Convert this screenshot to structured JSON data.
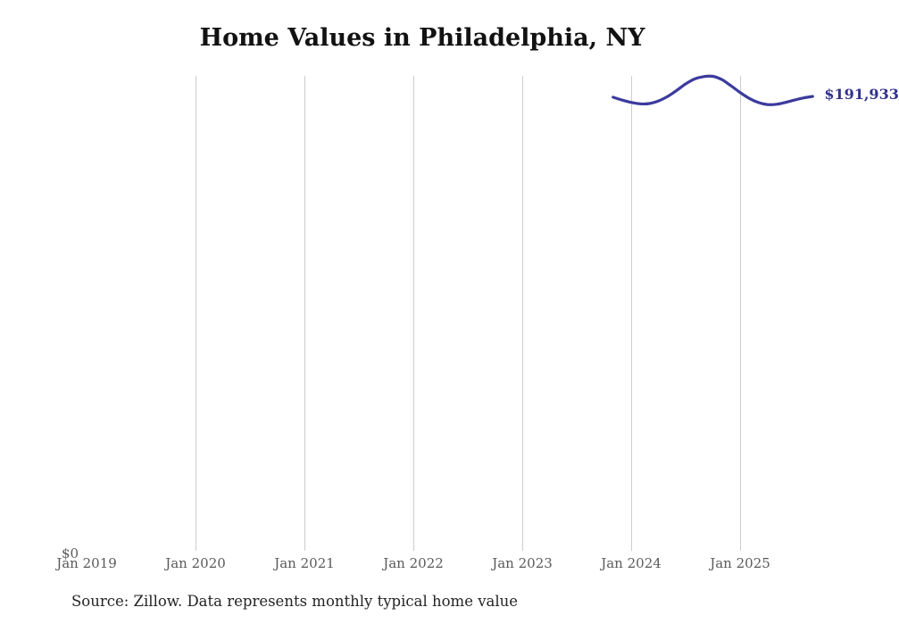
{
  "title": "Home Values in Philadelphia, NY",
  "source_note": "Source: Zillow. Data represents monthly typical home value",
  "colors": {
    "line": "#3b3b9e",
    "end_label": "#31318f",
    "gridline": "#cccccc",
    "tick_label": "#5a5a5a",
    "title_text": "#121212",
    "source_text": "#242424",
    "background": "#ffffff"
  },
  "chart_data": {
    "type": "line",
    "title": "Home Values in Philadelphia, NY",
    "xlabel": "",
    "ylabel": "",
    "grid": "vertical-only",
    "legend": "none",
    "x_ticks": [
      {
        "label": "Jan 2019",
        "date": "2019-01",
        "gridline": false
      },
      {
        "label": "Jan 2020",
        "date": "2020-01",
        "gridline": true
      },
      {
        "label": "Jan 2021",
        "date": "2021-01",
        "gridline": true
      },
      {
        "label": "Jan 2022",
        "date": "2022-01",
        "gridline": true
      },
      {
        "label": "Jan 2023",
        "date": "2023-01",
        "gridline": true
      },
      {
        "label": "Jan 2024",
        "date": "2024-01",
        "gridline": true
      },
      {
        "label": "Jan 2025",
        "date": "2025-01",
        "gridline": true
      }
    ],
    "y_axis": {
      "min_label": "$0",
      "ylim": [
        0,
        200600
      ]
    },
    "series": [
      {
        "end_label": "$191,933",
        "color": "#3b3b9e",
        "points": [
          {
            "date": "2023-11",
            "value": 191600
          },
          {
            "date": "2023-12",
            "value": 190400
          },
          {
            "date": "2024-01",
            "value": 189400
          },
          {
            "date": "2024-02",
            "value": 188800
          },
          {
            "date": "2024-03",
            "value": 188900
          },
          {
            "date": "2024-04",
            "value": 190000
          },
          {
            "date": "2024-05",
            "value": 191900
          },
          {
            "date": "2024-06",
            "value": 194400
          },
          {
            "date": "2024-07",
            "value": 197200
          },
          {
            "date": "2024-08",
            "value": 199300
          },
          {
            "date": "2024-09",
            "value": 200300
          },
          {
            "date": "2024-10",
            "value": 200400
          },
          {
            "date": "2024-11",
            "value": 199000
          },
          {
            "date": "2024-12",
            "value": 196400
          },
          {
            "date": "2025-01",
            "value": 193600
          },
          {
            "date": "2025-02",
            "value": 191100
          },
          {
            "date": "2025-03",
            "value": 189400
          },
          {
            "date": "2025-04",
            "value": 188500
          },
          {
            "date": "2025-05",
            "value": 188600
          },
          {
            "date": "2025-06",
            "value": 189400
          },
          {
            "date": "2025-07",
            "value": 190400
          },
          {
            "date": "2025-08",
            "value": 191300
          },
          {
            "date": "2025-09",
            "value": 191933
          }
        ]
      }
    ]
  }
}
